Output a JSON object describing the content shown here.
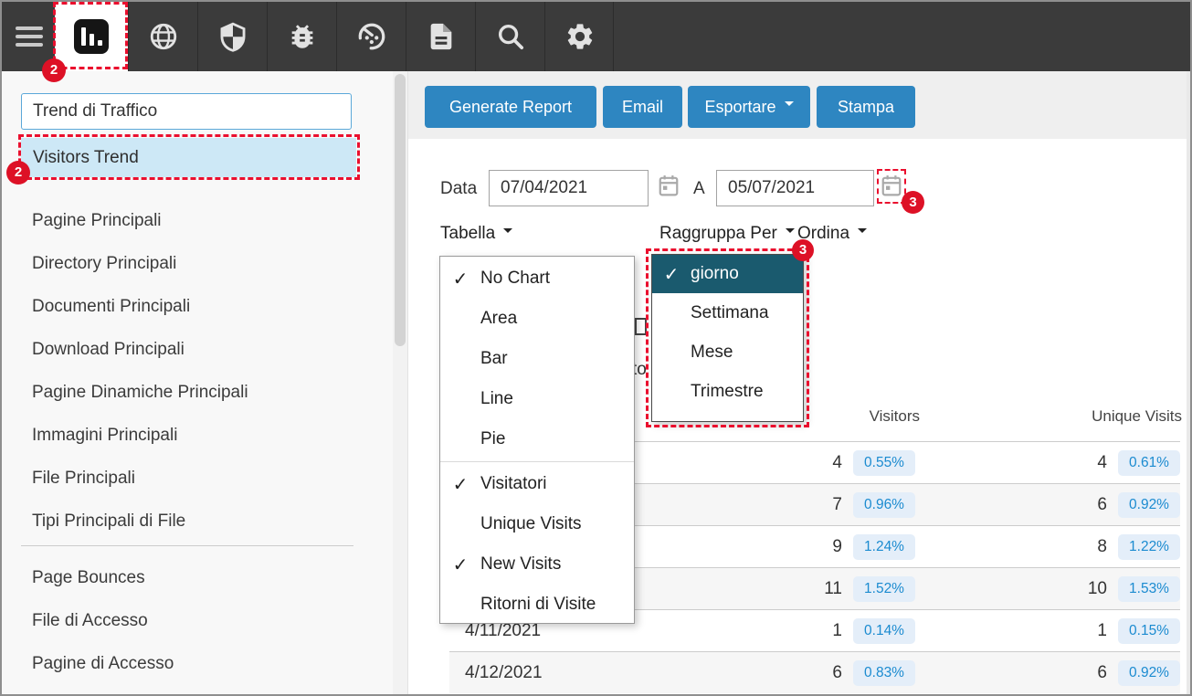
{
  "toolbar": {
    "icons": [
      "hamburger-menu",
      "bar-chart-selected",
      "globe",
      "shield",
      "bug",
      "gauge",
      "document",
      "search",
      "gear"
    ]
  },
  "annotations": {
    "tab_badge": "2",
    "sidebar_badge": "2",
    "calendar_badge": "3",
    "group_badge": "3"
  },
  "sidebar": {
    "search_value": "Trend di Traffico",
    "selected_item": "Visitors Trend",
    "group1": [
      "Pagine Principali",
      "Directory Principali",
      "Documenti Principali",
      "Download Principali",
      "Pagine Dinamiche Principali",
      "Immagini Principali",
      "File Principali",
      "Tipi Principali di File"
    ],
    "group2": [
      "Page Bounces",
      "File di Accesso",
      "Pagine di Accesso"
    ]
  },
  "actions": {
    "generate": "Generate Report",
    "email": "Email",
    "export": "Esportare",
    "print": "Stampa"
  },
  "filters": {
    "date_label": "Data",
    "date_from": "07/04/2021",
    "to_label": "A",
    "date_to": "05/07/2021",
    "table_label": "Tabella",
    "group_label": "Raggruppa Per",
    "sort_label": "Ordina"
  },
  "table_menu": {
    "items": [
      {
        "label": "No Chart",
        "checked": true
      },
      {
        "label": "Area",
        "checked": false
      },
      {
        "label": "Bar",
        "checked": false
      },
      {
        "label": "Line",
        "checked": false
      },
      {
        "label": "Pie",
        "checked": false
      },
      {
        "divider": true
      },
      {
        "label": "Visitatori",
        "checked": true
      },
      {
        "label": "Unique Visits",
        "checked": false
      },
      {
        "label": "New Visits",
        "checked": true
      },
      {
        "label": "Ritorni di Visite",
        "checked": false
      }
    ]
  },
  "group_menu": {
    "items": [
      {
        "label": "giorno",
        "checked": true,
        "selected": true
      },
      {
        "label": "Settimana",
        "checked": false
      },
      {
        "label": "Mese",
        "checked": false
      },
      {
        "label": "Trimestre",
        "checked": false
      }
    ]
  },
  "fragments": {
    "partial_text": "to"
  },
  "report_table": {
    "columns": {
      "visitors": "Visitors",
      "unique": "Unique Visits"
    },
    "rows": [
      {
        "date": "",
        "visitors": "4",
        "visitors_pct": "0.55%",
        "unique": "4",
        "unique_pct": "0.61%"
      },
      {
        "date": "",
        "visitors": "7",
        "visitors_pct": "0.96%",
        "unique": "6",
        "unique_pct": "0.92%"
      },
      {
        "date": "",
        "visitors": "9",
        "visitors_pct": "1.24%",
        "unique": "8",
        "unique_pct": "1.22%"
      },
      {
        "date": "",
        "visitors": "11",
        "visitors_pct": "1.52%",
        "unique": "10",
        "unique_pct": "1.53%"
      },
      {
        "date": "4/11/2021",
        "visitors": "1",
        "visitors_pct": "0.14%",
        "unique": "1",
        "unique_pct": "0.15%"
      },
      {
        "date": "4/12/2021",
        "visitors": "6",
        "visitors_pct": "0.83%",
        "unique": "6",
        "unique_pct": "0.92%"
      }
    ]
  },
  "colors": {
    "toolbar_bg": "#3b3b3b",
    "accent_blue": "#2e86c1",
    "annotation_red": "#ea0f2e",
    "selected_teal": "#1a5a6e",
    "sidebar_selected": "#cde8f6",
    "pct_badge_bg": "#e4eef9",
    "pct_badge_text": "#1b8bd0"
  }
}
